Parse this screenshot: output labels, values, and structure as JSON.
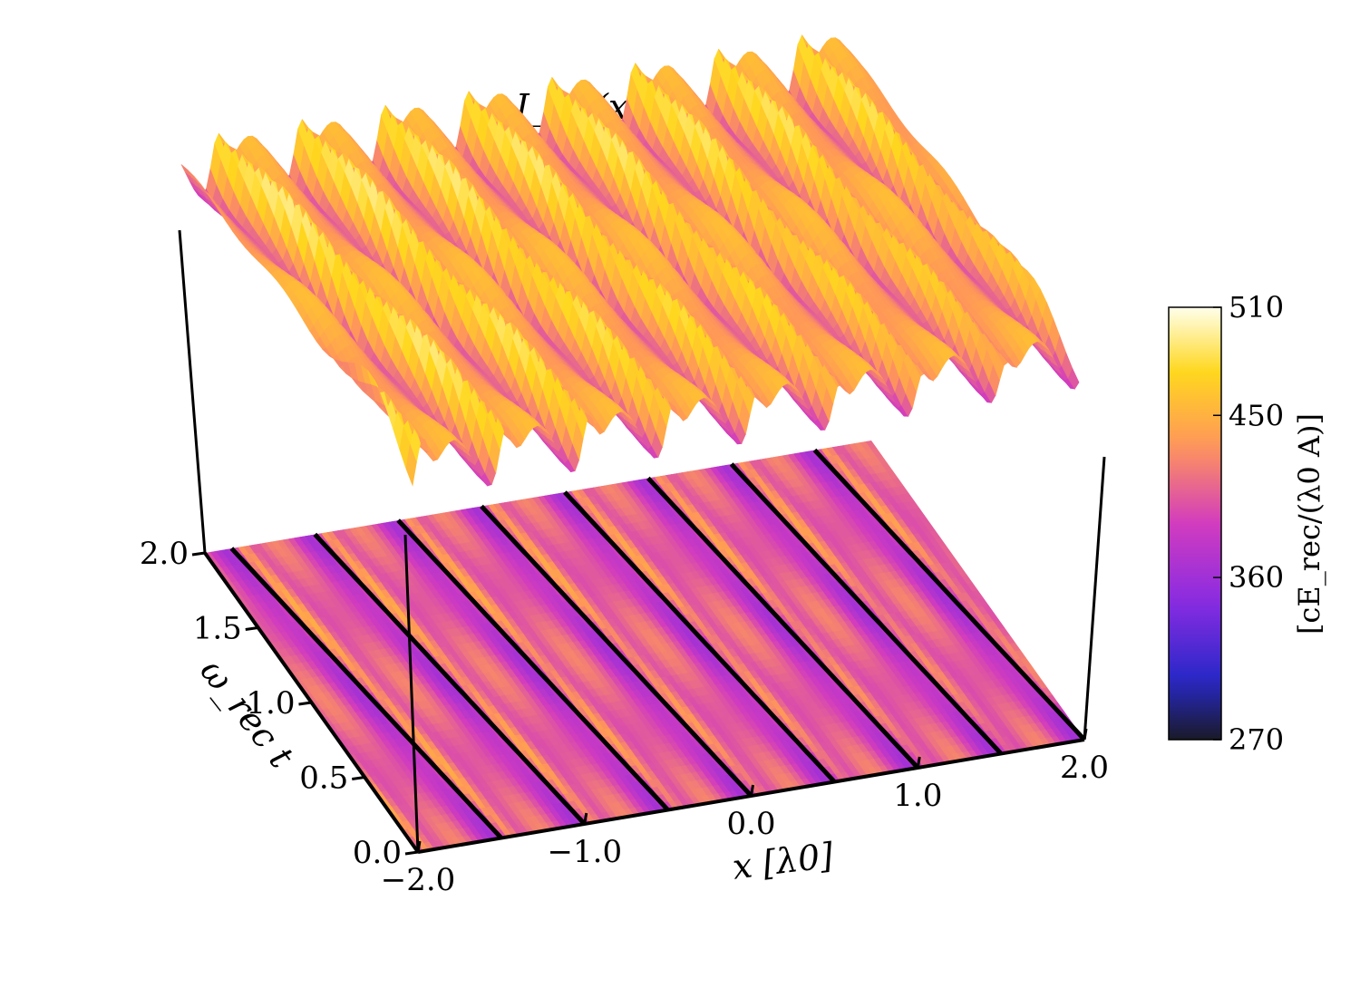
{
  "chart_data": {
    "type": "surface3d",
    "title": "I_tot(x)",
    "x_axis": {
      "label": "x [λ0]",
      "range": [
        -2.0,
        2.0
      ],
      "ticks": [
        "−2.0",
        "−1.0",
        "0.0",
        "1.0",
        "2.0"
      ],
      "tick_values": [
        -2.0,
        -1.0,
        0.0,
        1.0,
        2.0
      ]
    },
    "y_axis": {
      "label": "ω_rec t",
      "range": [
        0.0,
        2.0
      ],
      "ticks": [
        "0.0",
        "0.5",
        "1.0",
        "1.5",
        "2.0"
      ],
      "tick_values": [
        0.0,
        0.5,
        1.0,
        1.5,
        2.0
      ]
    },
    "colorbar": {
      "label": "[cE_rec/(λ0 A)]",
      "range": [
        270,
        510
      ],
      "ticks": [
        "270",
        "360",
        "450",
        "510"
      ],
      "tick_values": [
        270,
        360,
        450,
        510
      ],
      "colormap": "gnuplot-like",
      "colors": [
        "#1a1a2e",
        "#2e2ecc",
        "#8a2be2",
        "#e040c0",
        "#ff9a3c",
        "#ffe000",
        "#ffffe8"
      ]
    },
    "surface": {
      "description_free": true,
      "x_periods": 8,
      "intensity_min": 270,
      "intensity_max": 510
    },
    "trajectories": {
      "count": 9,
      "x_start": [
        -2.0,
        -1.5,
        -1.0,
        -0.5,
        0.0,
        0.5,
        1.0,
        1.5,
        2.0
      ],
      "drift_per_unit_t": -0.17
    }
  }
}
